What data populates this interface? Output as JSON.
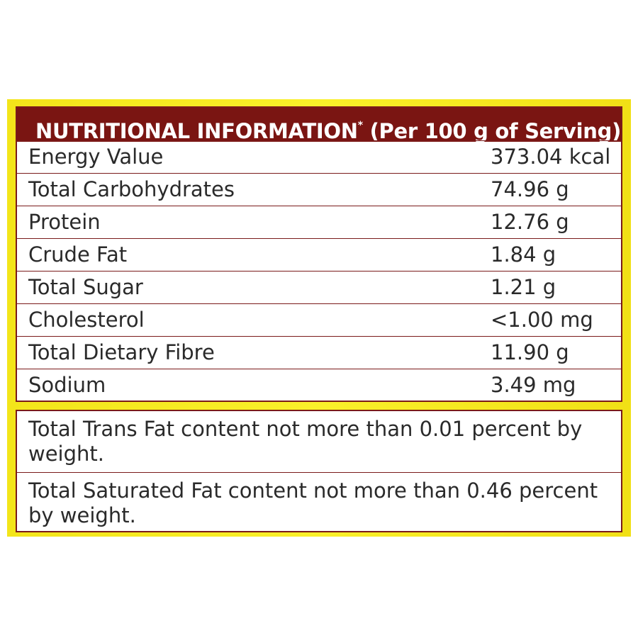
{
  "header": {
    "title": "NUTRITIONAL INFORMATION",
    "marker": "*",
    "subtitle": "(Per 100 g of Serving)"
  },
  "table": {
    "rows": [
      [
        "Energy Value",
        "373.04 kcal"
      ],
      [
        "Total Carbohydrates",
        "74.96 g"
      ],
      [
        "Protein",
        "12.76 g"
      ],
      [
        "Crude Fat",
        "1.84 g"
      ],
      [
        "Total Sugar",
        "1.21 g"
      ],
      [
        "Cholesterol",
        "<1.00 mg"
      ],
      [
        "Total Dietary Fibre",
        "11.90 g"
      ],
      [
        "Sodium",
        "3.49 mg"
      ]
    ]
  },
  "notes": [
    "Total Trans Fat content not more than 0.01 percent by weight.",
    "Total Saturated Fat content not more than 0.46 percent by weight."
  ]
}
